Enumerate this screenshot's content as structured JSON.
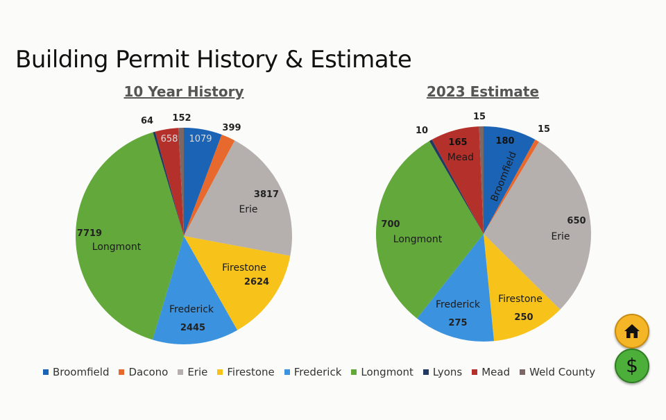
{
  "title": "Building Permit History & Estimate",
  "colors": {
    "Broomfield": "#1b63b4",
    "Dacono": "#e8692d",
    "Erie": "#b5b0ad",
    "Firestone": "#f7c21a",
    "Frederick": "#3b92de",
    "Longmont": "#62a83a",
    "Lyons": "#223a63",
    "Mead": "#b4302a",
    "Weld County": "#7b6764"
  },
  "legend": [
    "Broomfield",
    "Dacono",
    "Erie",
    "Firestone",
    "Frederick",
    "Longmont",
    "Lyons",
    "Mead",
    "Weld County"
  ],
  "chart_data": [
    {
      "type": "pie",
      "title": "10 Year History",
      "slices": [
        {
          "name": "Broomfield",
          "value": 1079
        },
        {
          "name": "Dacono",
          "value": 399
        },
        {
          "name": "Erie",
          "value": 3817
        },
        {
          "name": "Firestone",
          "value": 2624
        },
        {
          "name": "Frederick",
          "value": 2445
        },
        {
          "name": "Longmont",
          "value": 7719
        },
        {
          "name": "Lyons",
          "value": 64
        },
        {
          "name": "Mead",
          "value": 658
        },
        {
          "name": "Weld County",
          "value": 152
        }
      ]
    },
    {
      "type": "pie",
      "title": "2023 Estimate",
      "slices": [
        {
          "name": "Broomfield",
          "value": 180
        },
        {
          "name": "Dacono",
          "value": 15
        },
        {
          "name": "Erie",
          "value": 650
        },
        {
          "name": "Firestone",
          "value": 250
        },
        {
          "name": "Frederick",
          "value": 275
        },
        {
          "name": "Longmont",
          "value": 700
        },
        {
          "name": "Lyons",
          "value": 10
        },
        {
          "name": "Mead",
          "value": 165
        },
        {
          "name": "Weld County",
          "value": 15
        }
      ]
    }
  ],
  "nav": {
    "home_icon": "home-icon",
    "dollar_icon": "dollar-icon",
    "dollar_symbol": "$"
  }
}
